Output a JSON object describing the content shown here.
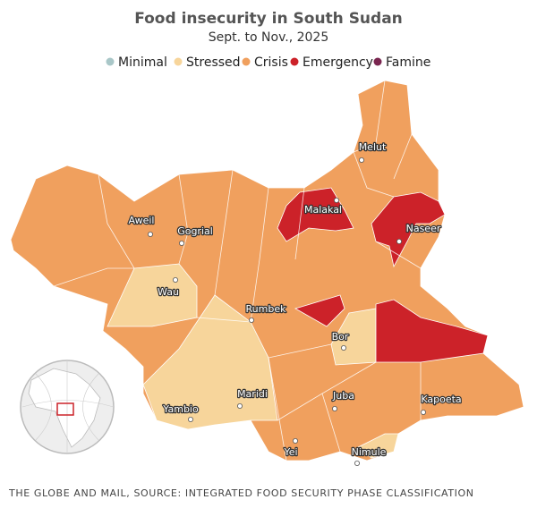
{
  "title": "Food insecurity in South Sudan",
  "subtitle": "Sept. to Nov., 2025",
  "legend": [
    {
      "label": "Minimal",
      "color": "#a9c7c8"
    },
    {
      "label": "Stressed",
      "color": "#f7d59b"
    },
    {
      "label": "Crisis",
      "color": "#f0a05e"
    },
    {
      "label": "Emergency",
      "color": "#cc2229"
    },
    {
      "label": "Famine",
      "color": "#7a2650"
    }
  ],
  "cities": [
    "Melut",
    "Malakal",
    "Aweil",
    "Gogrial",
    "Naseer",
    "Wau",
    "Rumbek",
    "Bor",
    "Maridi",
    "Juba",
    "Kapoeta",
    "Yambio",
    "Yei",
    "Nimule"
  ],
  "source": "THE GLOBE AND MAIL, SOURCE: INTEGRATED FOOD SECURITY PHASE CLASSIFICATION"
}
